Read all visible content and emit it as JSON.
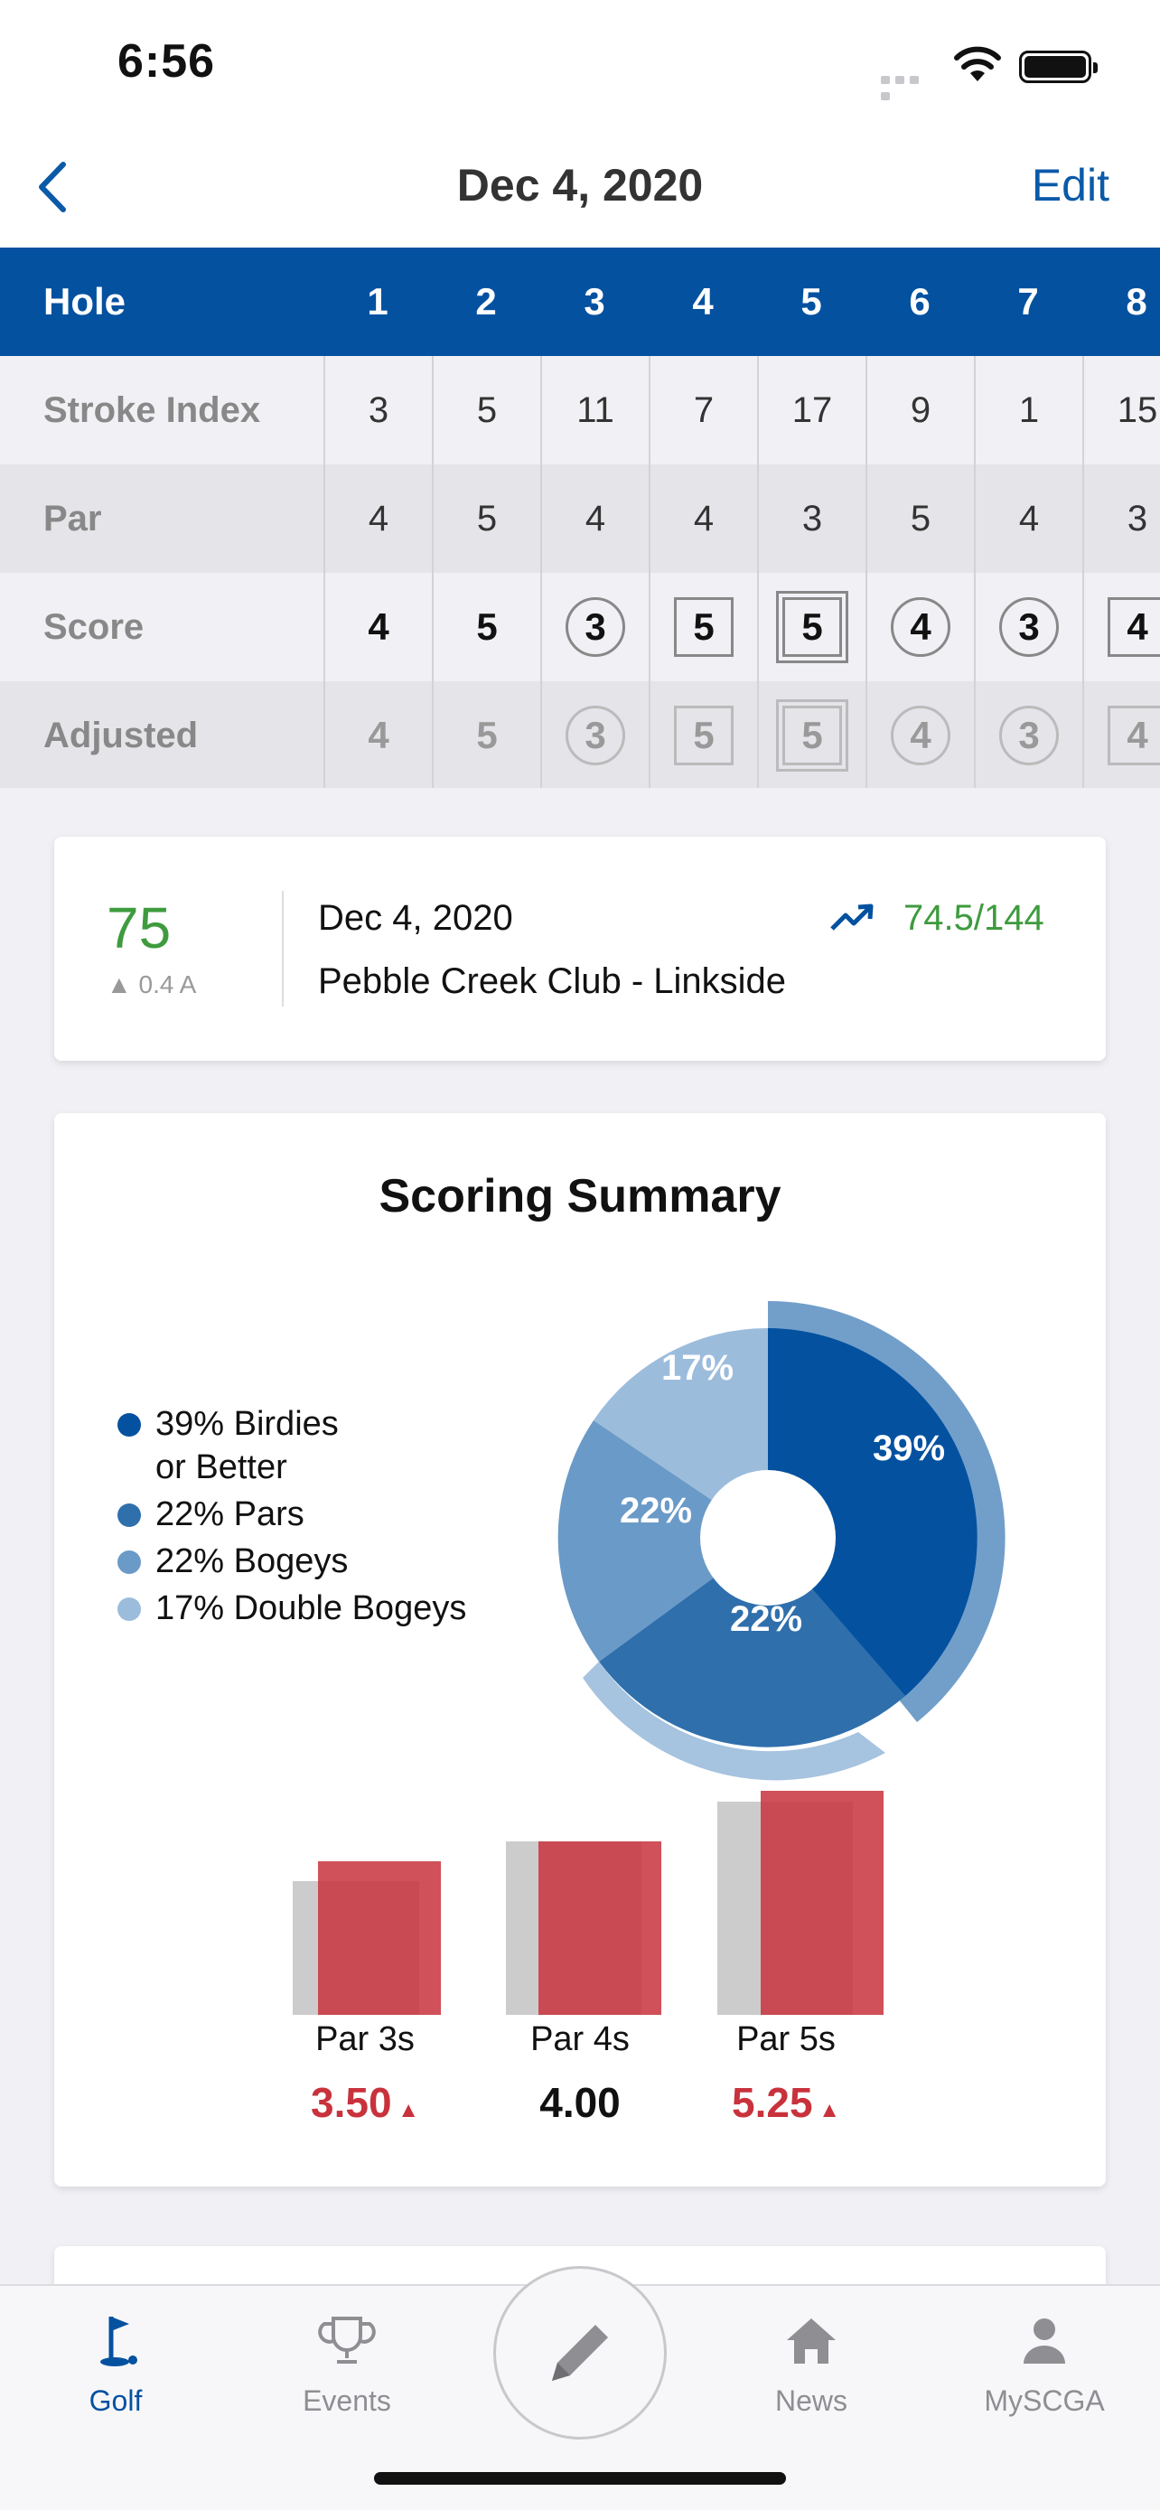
{
  "status_bar": {
    "time": "6:56"
  },
  "nav": {
    "title": "Dec 4, 2020",
    "edit_label": "Edit"
  },
  "scorecard": {
    "header": {
      "label": "Hole",
      "holes": [
        "1",
        "2",
        "3",
        "4",
        "5",
        "6",
        "7",
        "8"
      ]
    },
    "stroke_index": {
      "label": "Stroke Index",
      "values": [
        "3",
        "5",
        "11",
        "7",
        "17",
        "9",
        "1",
        "15"
      ]
    },
    "par": {
      "label": "Par",
      "values": [
        "4",
        "5",
        "4",
        "4",
        "3",
        "5",
        "4",
        "3"
      ]
    },
    "score": {
      "label": "Score",
      "values": [
        "4",
        "5",
        "3",
        "5",
        "5",
        "4",
        "3",
        "4"
      ],
      "marks": [
        "none",
        "none",
        "circle",
        "square",
        "double-square",
        "circle",
        "circle",
        "square"
      ]
    },
    "adjusted": {
      "label": "Adjusted",
      "values": [
        "4",
        "5",
        "3",
        "5",
        "5",
        "4",
        "3",
        "4"
      ],
      "marks": [
        "none",
        "none",
        "circle",
        "square",
        "double-square",
        "circle",
        "circle",
        "square"
      ]
    }
  },
  "round": {
    "score": "75",
    "differential": "▲ 0.4 A",
    "date": "Dec 4, 2020",
    "course": "Pebble Creek Club - Linkside",
    "rating_slope": "74.5/144",
    "trend_icon": "trending-up-icon"
  },
  "summary": {
    "title": "Scoring Summary",
    "legend": [
      {
        "line1": "39% Birdies",
        "line2": "or Better"
      },
      {
        "line1": "22% Pars",
        "line2": ""
      },
      {
        "line1": "22% Bogeys",
        "line2": ""
      },
      {
        "line1": "17% Double Bogeys",
        "line2": ""
      }
    ],
    "slice_labels": [
      "39%",
      "22%",
      "22%",
      "17%"
    ],
    "par_labels": [
      "Par 3s",
      "Par 4s",
      "Par 5s"
    ],
    "par_values": [
      "3.50",
      "4.00",
      "5.25"
    ]
  },
  "colors": {
    "primary": "#0451a0",
    "green": "#3e9b3e",
    "red": "#c8323c",
    "slices": [
      "#0451a0",
      "#2f6fac",
      "#6a9ac7",
      "#9cbcdc"
    ]
  },
  "tabbar": {
    "golf": "Golf",
    "events": "Events",
    "news": "News",
    "myscga": "MySCGA"
  }
}
